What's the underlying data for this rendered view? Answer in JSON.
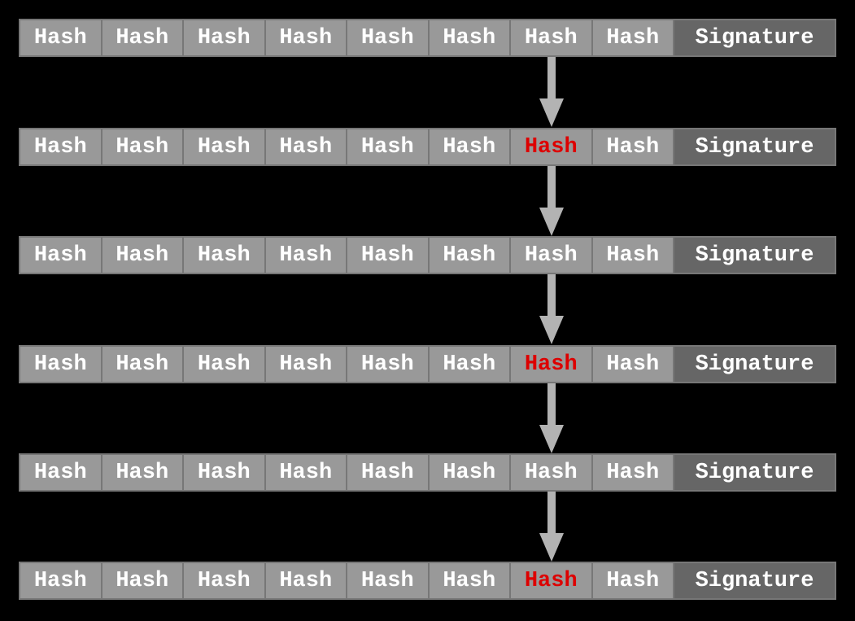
{
  "diagram": {
    "description": "Hash chain rows with signature, linked by downward arrows",
    "labels": {
      "hash": "Hash",
      "signature": "Signature"
    },
    "colors": {
      "background": "#000000",
      "hash_cell_fill": "#999999",
      "signature_cell_fill": "#666666",
      "cell_border": "#777777",
      "text": "#ffffff",
      "highlight_text": "#dd0000",
      "arrow": "#b3b3b3"
    },
    "rows": [
      {
        "cells": [
          "Hash",
          "Hash",
          "Hash",
          "Hash",
          "Hash",
          "Hash",
          "Hash",
          "Hash",
          "Signature"
        ],
        "highlight_index": null
      },
      {
        "cells": [
          "Hash",
          "Hash",
          "Hash",
          "Hash",
          "Hash",
          "Hash",
          "Hash",
          "Hash",
          "Signature"
        ],
        "highlight_index": 6
      },
      {
        "cells": [
          "Hash",
          "Hash",
          "Hash",
          "Hash",
          "Hash",
          "Hash",
          "Hash",
          "Hash",
          "Signature"
        ],
        "highlight_index": null
      },
      {
        "cells": [
          "Hash",
          "Hash",
          "Hash",
          "Hash",
          "Hash",
          "Hash",
          "Hash",
          "Hash",
          "Signature"
        ],
        "highlight_index": 6
      },
      {
        "cells": [
          "Hash",
          "Hash",
          "Hash",
          "Hash",
          "Hash",
          "Hash",
          "Hash",
          "Hash",
          "Signature"
        ],
        "highlight_index": null
      },
      {
        "cells": [
          "Hash",
          "Hash",
          "Hash",
          "Hash",
          "Hash",
          "Hash",
          "Hash",
          "Hash",
          "Signature"
        ],
        "highlight_index": 6
      }
    ],
    "arrows": [
      {
        "from_row": 1,
        "to_row": 2,
        "column": 7
      },
      {
        "from_row": 2,
        "to_row": 3,
        "column": 7
      },
      {
        "from_row": 3,
        "to_row": 4,
        "column": 7
      },
      {
        "from_row": 4,
        "to_row": 5,
        "column": 7
      },
      {
        "from_row": 5,
        "to_row": 6,
        "column": 7
      }
    ]
  }
}
